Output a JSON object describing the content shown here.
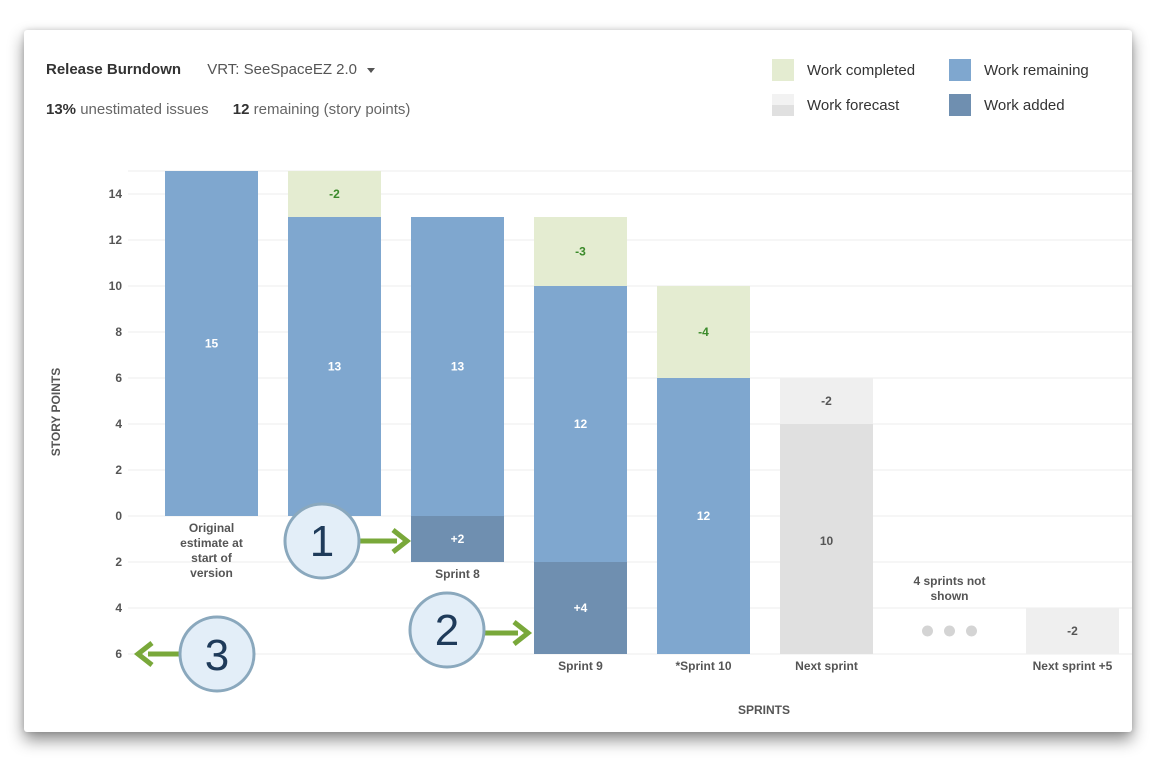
{
  "header": {
    "title": "Release Burndown",
    "version_selector": "VRT: SeeSpaceEZ 2.0",
    "unestimated_pct": "13%",
    "unestimated_label": "unestimated issues",
    "remaining_value": "12",
    "remaining_label": "remaining (story points)"
  },
  "legend": {
    "work_completed": "Work completed",
    "work_remaining": "Work remaining",
    "work_forecast": "Work forecast",
    "work_added": "Work added"
  },
  "colors": {
    "completed": "#e4ecd1",
    "remaining": "#7fa7cf",
    "forecast_top": "#efefef",
    "forecast_bottom": "#e0e0e0",
    "added": "#6f8fb0",
    "callout_arrow": "#79a83a",
    "completed_text": "#3a8a2a"
  },
  "chart_data": {
    "type": "bar",
    "subtype": "release-burndown",
    "xlabel": "SPRINTS",
    "ylabel": "STORY POINTS",
    "yticks_up": [
      0,
      2,
      4,
      6,
      8,
      10,
      12,
      14
    ],
    "yticks_down": [
      2,
      4,
      6
    ],
    "ylim": [
      -6,
      15
    ],
    "grid": true,
    "categories": [
      {
        "label": [
          "Original",
          "estimate at",
          "start of",
          "version"
        ],
        "remaining": 15,
        "completed": 0,
        "added": 0,
        "remaining_label": "15"
      },
      {
        "label": [],
        "remaining": 13,
        "completed": 2,
        "added": 0,
        "remaining_label": "13",
        "completed_label": "-2"
      },
      {
        "label": [
          "Sprint 8"
        ],
        "remaining": 13,
        "completed": 0,
        "added": 2,
        "remaining_label": "13",
        "added_label": "+2"
      },
      {
        "label": [
          "Sprint 9"
        ],
        "remaining": 10,
        "completed": 3,
        "added": 4,
        "remaining_label": "12",
        "completed_label": "-3",
        "added_label": "+4"
      },
      {
        "label": [
          "*Sprint 10"
        ],
        "remaining": 6,
        "completed": 4,
        "added": 0,
        "remaining_label": "12",
        "completed_label": "-4",
        "remaining_below": 6
      },
      {
        "label": [
          "Next sprint"
        ],
        "forecast_remaining": 4,
        "forecast_completed": 2,
        "forecast_below": 6,
        "forecast_label": "10",
        "forecast_completed_label": "-2"
      },
      {
        "label": [
          "4 sprints not",
          "shown"
        ],
        "placeholder": true
      },
      {
        "label": [
          "Next sprint +5"
        ],
        "forecast_completed": 2,
        "forecast_below_start": 4,
        "forecast_completed_label": "-2"
      }
    ]
  },
  "callouts": [
    "1",
    "2",
    "3"
  ]
}
